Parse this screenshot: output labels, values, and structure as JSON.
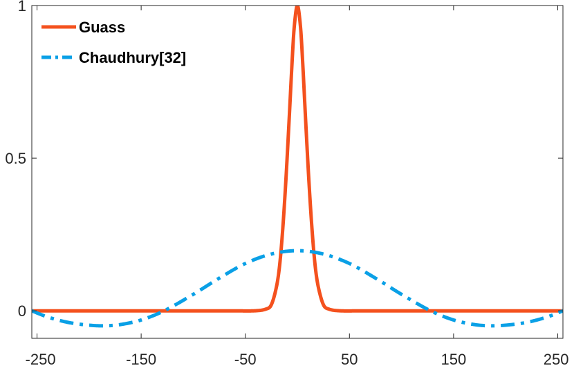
{
  "chart_data": {
    "type": "line",
    "title": "",
    "xlabel": "",
    "ylabel": "",
    "xlim": [
      -255,
      255
    ],
    "ylim": [
      -0.09,
      1
    ],
    "xticks": [
      -250,
      -150,
      -50,
      50,
      150,
      250
    ],
    "xtick_labels": [
      "-250",
      "-150",
      "-50",
      "50",
      "150",
      "250"
    ],
    "yticks": [
      0,
      0.5,
      1
    ],
    "ytick_labels": [
      "0",
      "0.5",
      "1"
    ],
    "grid": false,
    "legend_position": "top-left",
    "series": [
      {
        "name": "Guass",
        "style": "solid",
        "color": "#f4511e",
        "x": [
          -255,
          -60,
          -40,
          -30,
          -25,
          -20,
          -17,
          -14,
          -11,
          -8,
          -5,
          -3,
          0,
          3,
          5,
          8,
          11,
          14,
          17,
          20,
          25,
          30,
          40,
          60,
          255
        ],
        "y": [
          0,
          0,
          0.0003,
          0.006,
          0.02,
          0.08,
          0.15,
          0.27,
          0.43,
          0.62,
          0.82,
          0.93,
          1,
          0.93,
          0.82,
          0.62,
          0.43,
          0.27,
          0.15,
          0.08,
          0.02,
          0.006,
          0.0003,
          0,
          0
        ]
      },
      {
        "name": "Chaudhury[32]",
        "style": "dash-dot",
        "color": "#0aa0e6",
        "x": [
          -255,
          -240,
          -220,
          -200,
          -185,
          -170,
          -150,
          -128,
          -100,
          -75,
          -50,
          -25,
          0,
          25,
          50,
          75,
          100,
          128,
          150,
          170,
          185,
          200,
          220,
          240,
          255
        ],
        "y": [
          0,
          -0.02,
          -0.038,
          -0.047,
          -0.049,
          -0.045,
          -0.03,
          0,
          0.054,
          0.107,
          0.155,
          0.186,
          0.197,
          0.186,
          0.155,
          0.107,
          0.054,
          0,
          -0.03,
          -0.045,
          -0.049,
          -0.047,
          -0.038,
          -0.02,
          0
        ]
      }
    ]
  }
}
